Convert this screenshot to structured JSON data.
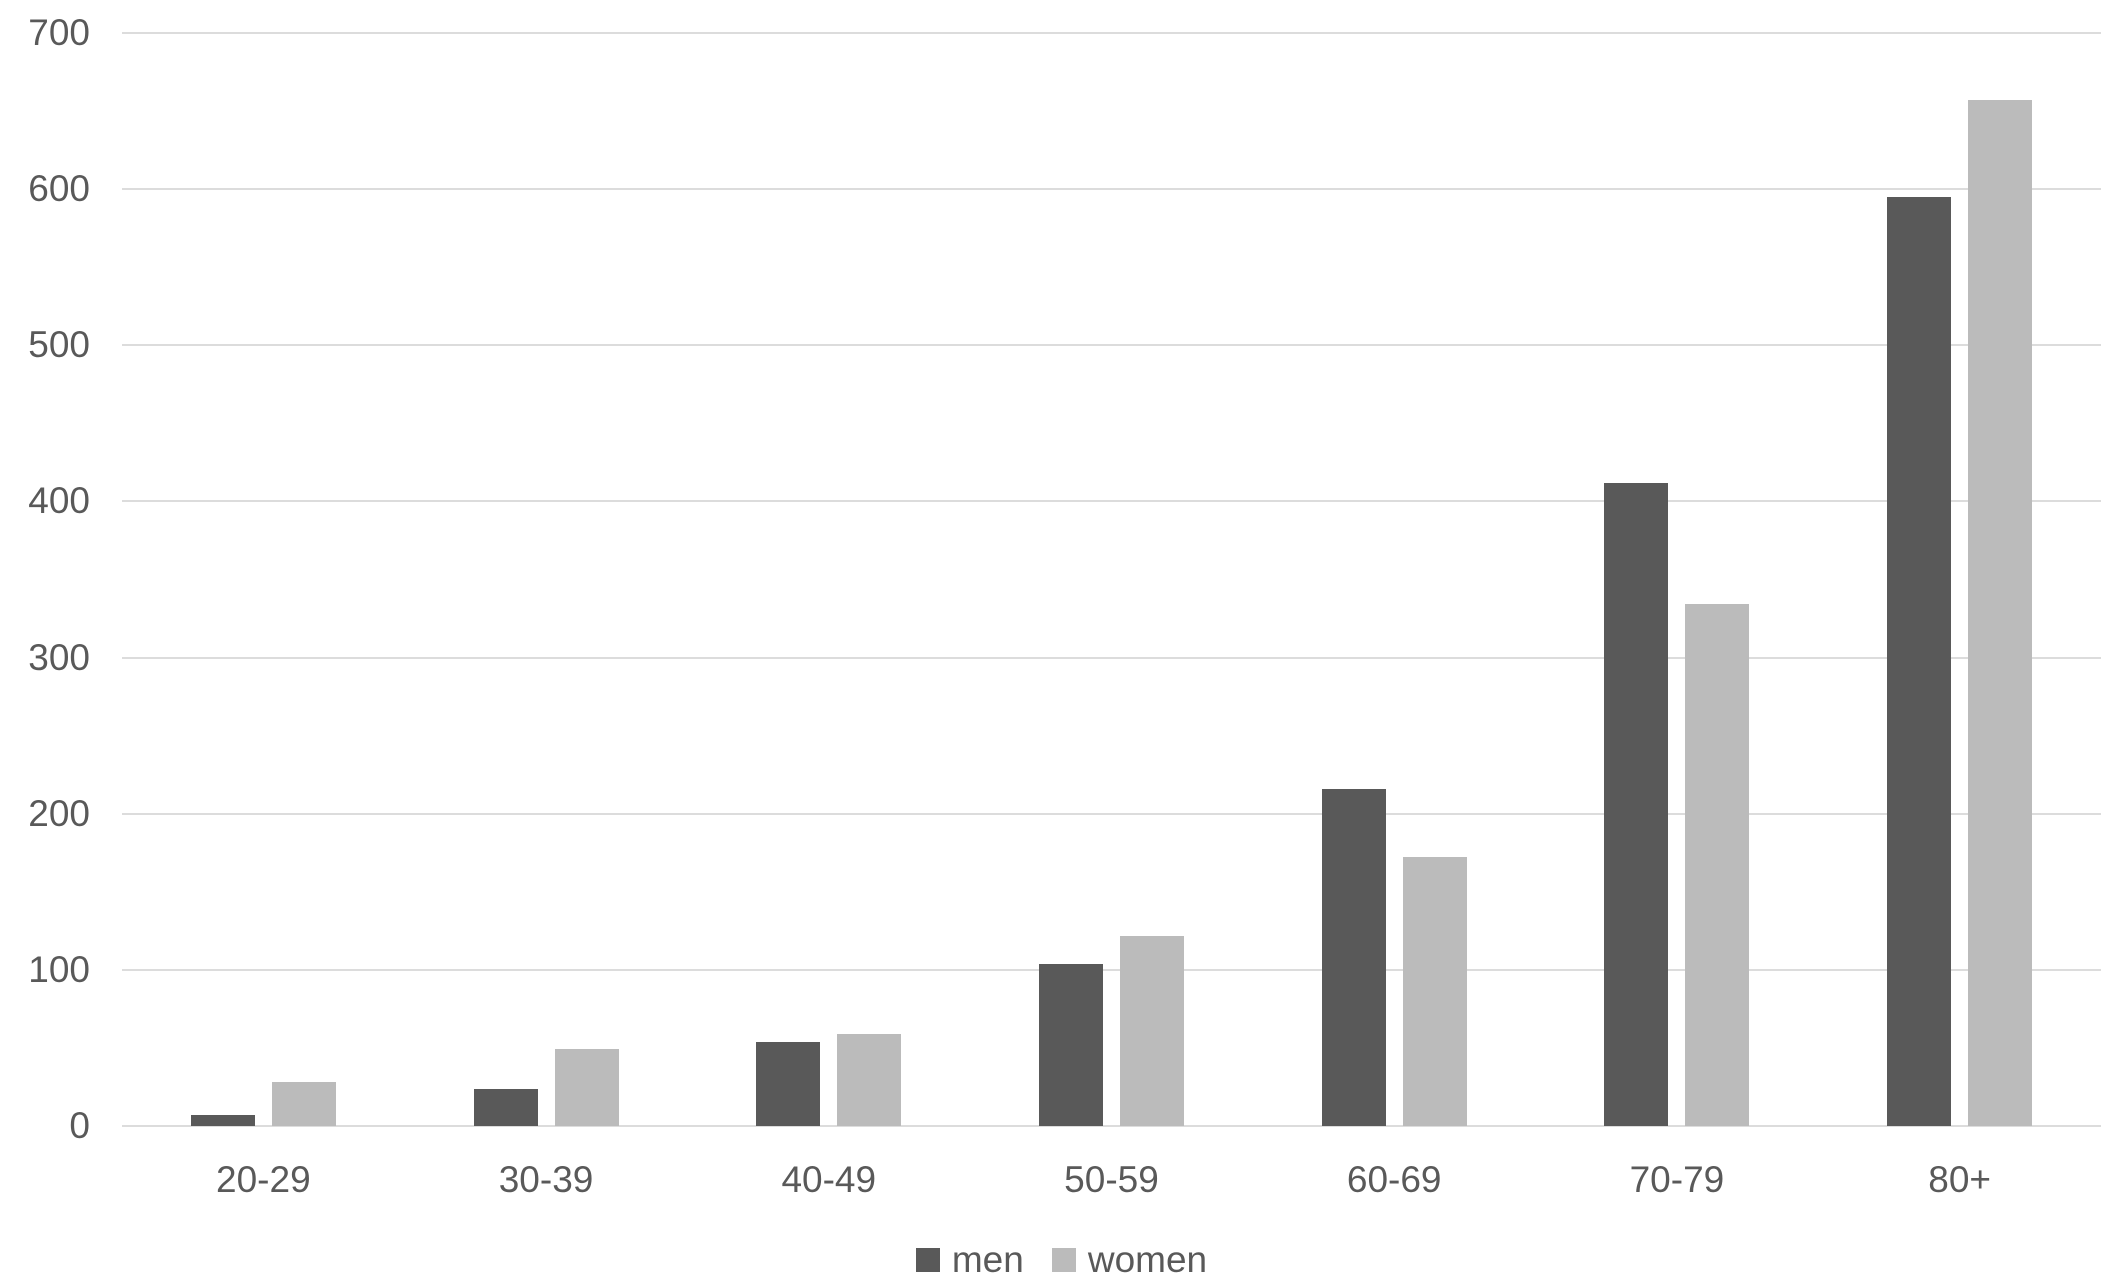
{
  "chart_data": {
    "type": "bar",
    "title": "",
    "categories": [
      "20-29",
      "30-39",
      "40-49",
      "50-59",
      "60-69",
      "70-79",
      "80+"
    ],
    "series": [
      {
        "name": "men",
        "color": "#595959",
        "values": [
          7,
          24,
          54,
          104,
          216,
          412,
          595
        ]
      },
      {
        "name": "women",
        "color": "#bbbbbb",
        "values": [
          28,
          49,
          59,
          122,
          172,
          334,
          657
        ]
      }
    ],
    "xlabel": "",
    "ylabel": "",
    "ylim": [
      0,
      700
    ],
    "yticks": [
      0,
      100,
      200,
      300,
      400,
      500,
      600,
      700
    ],
    "grid": "horizontal-only",
    "gridline_color": "#dcdcdc",
    "axis_text_color": "#595959",
    "background_color": "#ffffff",
    "legend_position": "bottom-center",
    "legend_entries": [
      "men",
      "women"
    ]
  }
}
